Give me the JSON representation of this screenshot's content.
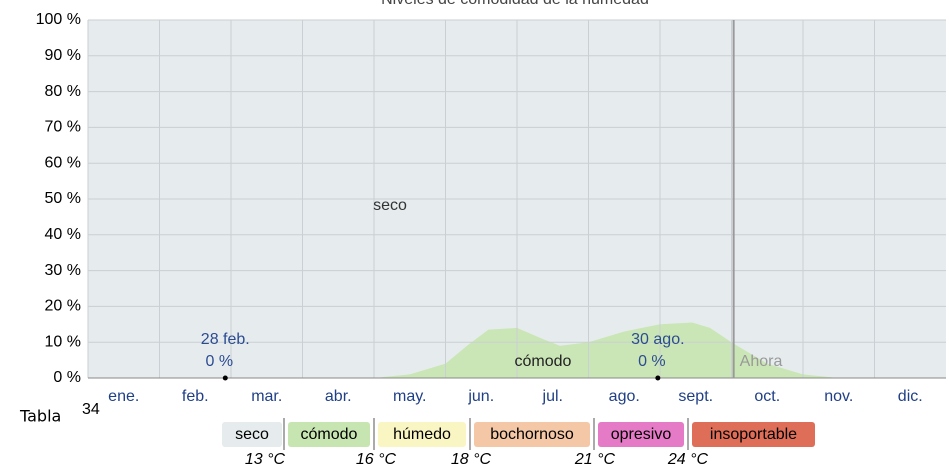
{
  "chart_data": {
    "type": "area",
    "title": "Niveles de comodidad de la humedad",
    "categories": [
      "ene.",
      "feb.",
      "mar.",
      "abr.",
      "may.",
      "jun.",
      "jul.",
      "ago.",
      "sept.",
      "oct.",
      "nov.",
      "dic."
    ],
    "xlim": [
      0,
      12
    ],
    "ylim": [
      0,
      100
    ],
    "yticks": [
      {
        "value": 0,
        "label": "0 %"
      },
      {
        "value": 10,
        "label": "10 %"
      },
      {
        "value": 20,
        "label": "20 %"
      },
      {
        "value": 30,
        "label": "30 %"
      },
      {
        "value": 40,
        "label": "40 %"
      },
      {
        "value": 50,
        "label": "50 %"
      },
      {
        "value": 60,
        "label": "60 %"
      },
      {
        "value": 70,
        "label": "70 %"
      },
      {
        "value": 80,
        "label": "80 %"
      },
      {
        "value": 90,
        "label": "90 %"
      },
      {
        "value": 100,
        "label": "100 %"
      }
    ],
    "grid": true,
    "background": {
      "name": "seco",
      "color": "#e6ecee"
    },
    "series": [
      {
        "name": "cómodo",
        "color": "#cbe6b6",
        "x": [
          4.0,
          4.5,
          5.0,
          5.3,
          5.6,
          6.0,
          6.35,
          6.6,
          7.0,
          7.5,
          8.0,
          8.45,
          8.7,
          9.0,
          9.5,
          10.0,
          10.5
        ],
        "values": [
          0,
          1,
          4,
          9,
          13.5,
          14,
          11,
          9,
          10,
          13,
          15,
          15.5,
          14,
          10,
          4,
          1,
          0
        ]
      }
    ],
    "points": [
      {
        "label": "28 feb.",
        "x": 1.92,
        "value": 0,
        "value_label": "0 %"
      },
      {
        "label": "30 ago.",
        "x": 7.97,
        "value": 0,
        "value_label": "0 %"
      }
    ],
    "now_line": {
      "label": "Ahora",
      "x": 9.03
    }
  },
  "footer": {
    "label": "Tabla",
    "sup": "34"
  },
  "legend": {
    "items": [
      {
        "name": "seco",
        "color": "#e6ecee"
      },
      {
        "name": "cómodo",
        "color": "#c7e5b1"
      },
      {
        "name": "húmedo",
        "color": "#faf6c4"
      },
      {
        "name": "bochornoso",
        "color": "#f4c7a6"
      },
      {
        "name": "opresivo",
        "color": "#e57ac6"
      },
      {
        "name": "insoportable",
        "color": "#df6e58"
      }
    ],
    "thresholds": [
      "13 °C",
      "16 °C",
      "18 °C",
      "21 °C",
      "24 °C"
    ]
  }
}
